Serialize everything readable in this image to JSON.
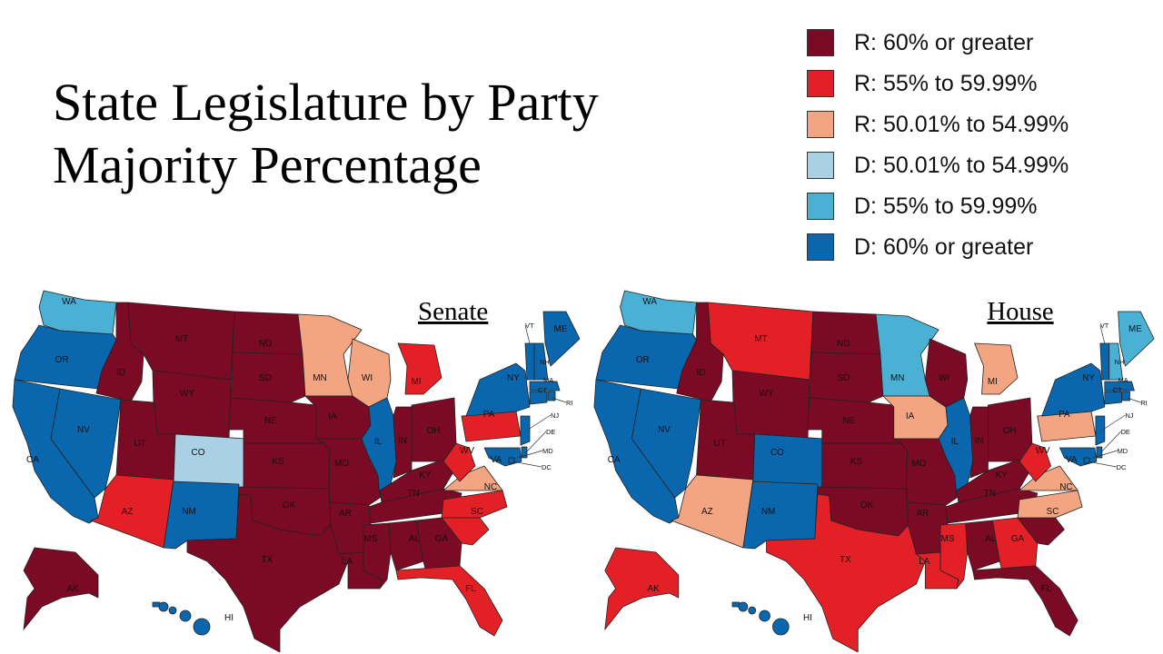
{
  "title": {
    "line1": "State Legislature by Party",
    "line2": "Majority Percentage"
  },
  "legend": [
    {
      "key": "R60",
      "label": "R: 60% or greater",
      "color": "#7b0a24"
    },
    {
      "key": "R55",
      "label": "R: 55% to 59.99%",
      "color": "#e32026"
    },
    {
      "key": "R50",
      "label": "R: 50.01% to 54.99%",
      "color": "#f3a582"
    },
    {
      "key": "D50",
      "label": "D: 50.01% to 54.99%",
      "color": "#a9d0e4"
    },
    {
      "key": "D55",
      "label": "D: 55% to 59.99%",
      "color": "#4bb1d4"
    },
    {
      "key": "D60",
      "label": "D: 60% or greater",
      "color": "#0a67ad"
    }
  ],
  "maps": [
    {
      "title": "Senate",
      "states": {
        "WA": "D55",
        "OR": "D60",
        "CA": "D60",
        "NV": "D60",
        "ID": "R60",
        "MT": "R60",
        "WY": "R60",
        "UT": "R60",
        "AZ": "R55",
        "CO": "D50",
        "NM": "D60",
        "ND": "R60",
        "SD": "R60",
        "NE": "R60",
        "KS": "R60",
        "OK": "R60",
        "TX": "R60",
        "MN": "R50",
        "IA": "R60",
        "MO": "R60",
        "AR": "R60",
        "LA": "R60",
        "WI": "R50",
        "IL": "D60",
        "MS": "R60",
        "AL": "R60",
        "TN": "R60",
        "KY": "R60",
        "IN": "R60",
        "MI": "R55",
        "OH": "R60",
        "GA": "R60",
        "FL": "R55",
        "SC": "R55",
        "NC": "R55",
        "VA": "R50",
        "WV": "R55",
        "PA": "R55",
        "NY": "D60",
        "VT": "D60",
        "NH": "D60",
        "ME": "D60",
        "MA": "D60",
        "RI": "D60",
        "CT": "D60",
        "NJ": "D60",
        "DE": "D60",
        "MD": "D60",
        "DC": "D60",
        "AK": "R60",
        "HI": "D60"
      }
    },
    {
      "title": "House",
      "states": {
        "WA": "D55",
        "OR": "D60",
        "CA": "D60",
        "NV": "D60",
        "ID": "R60",
        "MT": "R55",
        "WY": "R60",
        "UT": "R60",
        "AZ": "R50",
        "CO": "D60",
        "NM": "D60",
        "ND": "R60",
        "SD": "R60",
        "NE": "R60",
        "KS": "R60",
        "OK": "R60",
        "TX": "R55",
        "MN": "D55",
        "IA": "R50",
        "MO": "R60",
        "AR": "R60",
        "LA": "R55",
        "WI": "R60",
        "IL": "D60",
        "MS": "R55",
        "AL": "R60",
        "TN": "R60",
        "KY": "R60",
        "IN": "R60",
        "MI": "R50",
        "OH": "R60",
        "GA": "R55",
        "FL": "R60",
        "SC": "R60",
        "NC": "R50",
        "VA": "R50",
        "WV": "R55",
        "PA": "R50",
        "NY": "D60",
        "VT": "D60",
        "NH": "D55",
        "ME": "D55",
        "MA": "D60",
        "RI": "D60",
        "CT": "D60",
        "NJ": "D60",
        "DE": "D60",
        "MD": "D60",
        "DC": "D60",
        "AK": "R55",
        "HI": "D60"
      }
    }
  ]
}
